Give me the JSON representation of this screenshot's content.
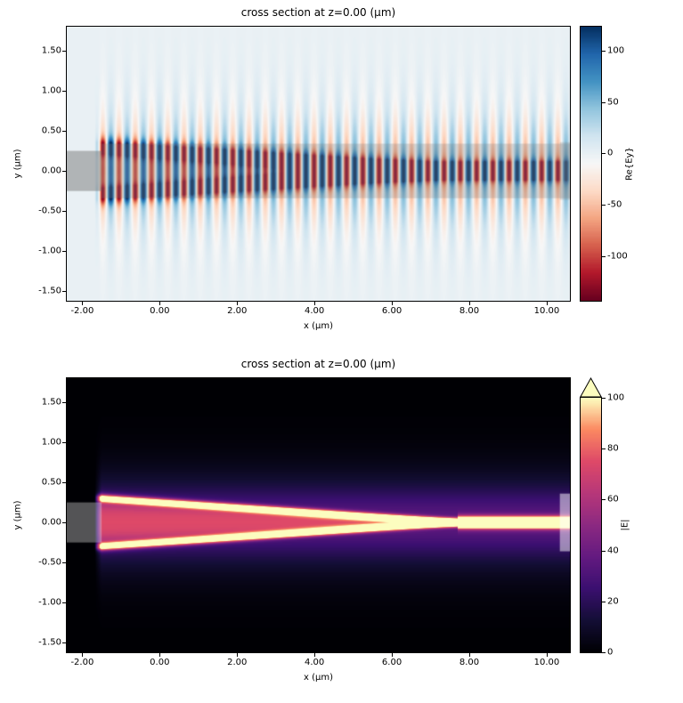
{
  "figure": {
    "background": "#ffffff"
  },
  "chart_data": [
    {
      "type": "heatmap",
      "title": "cross section at z=0.00 (µm)",
      "xlabel": "x (µm)",
      "ylabel": "y (µm)",
      "x_range": [
        -2.4,
        10.6
      ],
      "y_range": [
        -1.62,
        1.8
      ],
      "x_tick_values": [
        -2,
        0,
        2,
        4,
        6,
        8,
        10
      ],
      "x_tick_labels": [
        "-2.00",
        "0.00",
        "2.00",
        "4.00",
        "6.00",
        "8.00",
        "10.00"
      ],
      "y_tick_values": [
        1.5,
        1,
        0.5,
        0,
        -0.5,
        -1,
        -1.5
      ],
      "y_tick_labels": [
        "1.50",
        "1.00",
        "0.50",
        "0.00",
        "-0.50",
        "-1.00",
        "-1.50"
      ],
      "colormap": "RdBu",
      "colorbar": {
        "label": "Re{Ey}",
        "vmin": -143,
        "vmax": 123,
        "tick_values": [
          100,
          50,
          0,
          -50,
          -100
        ],
        "tick_labels": [
          "100",
          "50",
          "0",
          "-50",
          "-100"
        ],
        "extend": "neither"
      },
      "field": {
        "kind": "standing_wave",
        "amplitude": 115,
        "period_um": 0.42,
        "gate": [
          -1.68,
          -1.5
        ],
        "taper": {
          "x_start": -1.5,
          "x_tip": 7.7,
          "half_width_start": 0.3
        }
      },
      "overlays": [
        {
          "x0": -2.4,
          "x1": -1.5,
          "y0": -0.25,
          "y1": 0.25,
          "color": "rgba(120,120,120,0.50)"
        },
        {
          "x0": -1.5,
          "x1": 10.6,
          "y0": -0.34,
          "y1": 0.34,
          "color": "rgba(130,130,130,0.28)"
        },
        {
          "x0": 10.34,
          "x1": 10.6,
          "y0": -0.36,
          "y1": 0.36,
          "color": "rgba(130,130,130,0.25)"
        }
      ]
    },
    {
      "type": "heatmap",
      "title": "cross section at z=0.00 (µm)",
      "xlabel": "x (µm)",
      "ylabel": "y (µm)",
      "x_range": [
        -2.4,
        10.6
      ],
      "y_range": [
        -1.62,
        1.8
      ],
      "x_tick_values": [
        -2,
        0,
        2,
        4,
        6,
        8,
        10
      ],
      "x_tick_labels": [
        "-2.00",
        "0.00",
        "2.00",
        "4.00",
        "6.00",
        "8.00",
        "10.00"
      ],
      "y_tick_values": [
        1.5,
        1,
        0.5,
        0,
        -0.5,
        -1,
        -1.5
      ],
      "y_tick_labels": [
        "1.50",
        "1.00",
        "0.50",
        "0.00",
        "-0.50",
        "-1.00",
        "-1.50"
      ],
      "colormap": "magma",
      "colorbar": {
        "label": "|E|",
        "vmin": 0,
        "vmax": 100,
        "tick_values": [
          100,
          80,
          60,
          40,
          20,
          0
        ],
        "tick_labels": [
          "100",
          "80",
          "60",
          "40",
          "20",
          "0"
        ],
        "extend": "max"
      },
      "field": {
        "kind": "magnitude",
        "amplitude": 100,
        "gate": [
          -1.68,
          -1.5
        ],
        "taper": {
          "x_start": -1.5,
          "x_tip": 7.7,
          "half_width_start": 0.3
        }
      },
      "overlays": [
        {
          "x0": -2.4,
          "x1": -1.5,
          "y0": -0.25,
          "y1": 0.25,
          "color": "rgba(255,255,255,0.33)"
        },
        {
          "x0": 10.34,
          "x1": 10.6,
          "y0": -0.36,
          "y1": 0.36,
          "color": "rgba(255,255,255,0.50)"
        }
      ]
    }
  ],
  "colormaps": {
    "RdBu": [
      [
        0,
        "#67001f"
      ],
      [
        0.1,
        "#b2182b"
      ],
      [
        0.2,
        "#d6604d"
      ],
      [
        0.3,
        "#f4a582"
      ],
      [
        0.4,
        "#fddbc7"
      ],
      [
        0.5,
        "#f7f7f7"
      ],
      [
        0.6,
        "#d1e5f0"
      ],
      [
        0.7,
        "#92c5de"
      ],
      [
        0.8,
        "#4393c3"
      ],
      [
        0.9,
        "#2166ac"
      ],
      [
        1,
        "#053061"
      ]
    ],
    "magma": [
      [
        0,
        "#000004"
      ],
      [
        0.125,
        "#140e36"
      ],
      [
        0.25,
        "#3b0f70"
      ],
      [
        0.375,
        "#641a80"
      ],
      [
        0.5,
        "#8c2981"
      ],
      [
        0.625,
        "#b73779"
      ],
      [
        0.75,
        "#de4968"
      ],
      [
        0.875,
        "#fb8861"
      ],
      [
        1,
        "#fcfdbf"
      ]
    ]
  }
}
